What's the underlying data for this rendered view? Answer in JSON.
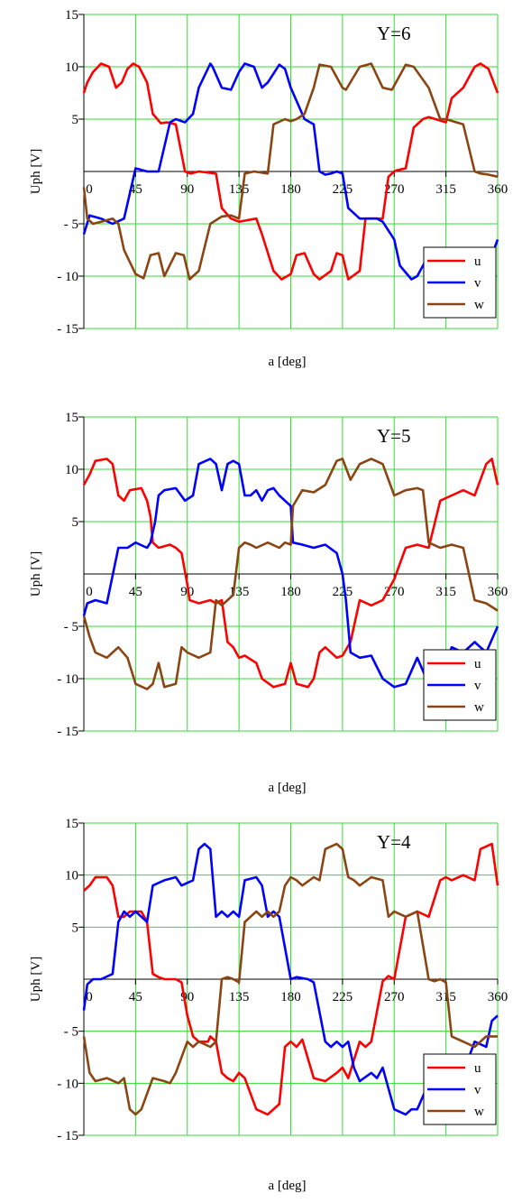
{
  "chart_data": [
    {
      "type": "line",
      "title": "",
      "annotation": "Y=6",
      "xlabel": "a [deg]",
      "ylabel": "Uph [V]",
      "xlim": [
        0,
        360
      ],
      "ylim": [
        -15,
        15
      ],
      "xticks": [
        "0",
        "45",
        "90",
        "135",
        "180",
        "225",
        "270",
        "315",
        "360"
      ],
      "yticks": [
        "15",
        "10",
        "5",
        "- 5",
        "- 10",
        "- 15"
      ],
      "grid": true,
      "legend_position": "bottom-right",
      "series": [
        {
          "name": "u",
          "color": "#ff0000",
          "x": [
            0,
            3,
            8,
            15,
            22,
            28,
            33,
            38,
            43,
            48,
            55,
            60,
            67,
            72,
            80,
            88,
            93,
            100,
            115,
            120,
            128,
            135,
            140,
            150,
            155,
            165,
            172,
            180,
            185,
            192,
            200,
            205,
            215,
            220,
            225,
            230,
            240,
            245,
            260,
            265,
            270,
            272,
            280,
            287,
            295,
            300,
            315,
            320,
            330,
            340,
            345,
            352,
            360
          ],
          "y": [
            7.5,
            8.5,
            9.5,
            10.3,
            10.0,
            8.0,
            8.5,
            9.8,
            10.3,
            10.0,
            8.5,
            5.5,
            4.6,
            4.7,
            4.5,
            0.0,
            -0.2,
            0.0,
            -0.2,
            -3.5,
            -4.5,
            -4.8,
            -4.7,
            -4.5,
            -6.0,
            -9.5,
            -10.3,
            -9.8,
            -8.0,
            -7.8,
            -9.8,
            -10.3,
            -9.5,
            -7.8,
            -8.0,
            -10.3,
            -9.5,
            -4.5,
            -4.5,
            -0.5,
            0.0,
            0.1,
            0.3,
            4.2,
            5.0,
            5.2,
            4.7,
            7.0,
            8.0,
            10.0,
            10.3,
            9.8,
            7.5
          ]
        },
        {
          "name": "v",
          "color": "#0000ff",
          "x": [
            0,
            5,
            15,
            25,
            35,
            45,
            55,
            65,
            75,
            80,
            88,
            95,
            100,
            110,
            112,
            120,
            128,
            135,
            140,
            148,
            155,
            160,
            170,
            175,
            180,
            192,
            200,
            205,
            210,
            215,
            220,
            225,
            230,
            240,
            255,
            260,
            270,
            275,
            285,
            290,
            300,
            315,
            330,
            340,
            350,
            360
          ],
          "y": [
            -6.0,
            -4.2,
            -4.5,
            -5.0,
            -4.5,
            0.3,
            0.0,
            0.0,
            4.7,
            5.0,
            4.7,
            5.5,
            8.0,
            10.3,
            10.0,
            8.0,
            7.8,
            9.5,
            10.3,
            10.0,
            8.0,
            8.5,
            10.2,
            9.8,
            8.0,
            5.0,
            4.5,
            0.0,
            -0.3,
            -0.2,
            0.0,
            -0.2,
            -3.5,
            -4.5,
            -4.5,
            -4.8,
            -6.5,
            -9.0,
            -10.3,
            -10.0,
            -8.0,
            -7.8,
            -9.5,
            -10.3,
            -9.5,
            -6.5
          ]
        },
        {
          "name": "w",
          "color": "#8b4513",
          "x": [
            0,
            3,
            8,
            15,
            25,
            30,
            35,
            45,
            52,
            58,
            65,
            70,
            80,
            87,
            92,
            100,
            110,
            120,
            128,
            135,
            140,
            148,
            160,
            165,
            175,
            180,
            185,
            192,
            200,
            205,
            215,
            225,
            228,
            240,
            250,
            260,
            268,
            280,
            287,
            300,
            310,
            315,
            330,
            340,
            345,
            352,
            360
          ],
          "y": [
            -1.5,
            -4.5,
            -5.0,
            -4.8,
            -4.5,
            -5.0,
            -7.5,
            -9.8,
            -10.2,
            -8.0,
            -7.8,
            -10.0,
            -7.8,
            -8.0,
            -10.3,
            -9.5,
            -5.0,
            -4.3,
            -4.2,
            -4.5,
            -0.2,
            0.0,
            -0.2,
            4.5,
            5.0,
            4.8,
            5.0,
            5.5,
            8.0,
            10.2,
            10.0,
            8.0,
            7.8,
            10.0,
            10.3,
            8.0,
            7.8,
            10.2,
            10.0,
            8.0,
            5.0,
            5.0,
            4.5,
            0.0,
            -0.2,
            -0.3,
            -0.5
          ]
        }
      ]
    },
    {
      "type": "line",
      "title": "",
      "annotation": "Y=5",
      "xlabel": "a [deg]",
      "ylabel": "Uph [V]",
      "xlim": [
        0,
        360
      ],
      "ylim": [
        -15,
        15
      ],
      "xticks": [
        "0",
        "45",
        "90",
        "135",
        "180",
        "225",
        "270",
        "315",
        "360"
      ],
      "yticks": [
        "15",
        "10",
        "5",
        "- 5",
        "- 10",
        "- 15"
      ],
      "grid": true,
      "legend_position": "bottom-right",
      "series": [
        {
          "name": "u",
          "color": "#ff0000",
          "x": [
            0,
            5,
            10,
            20,
            25,
            30,
            35,
            40,
            50,
            55,
            58,
            60,
            65,
            75,
            80,
            85,
            90,
            92,
            100,
            110,
            115,
            120,
            125,
            130,
            135,
            140,
            150,
            155,
            165,
            175,
            180,
            185,
            195,
            200,
            205,
            210,
            220,
            225,
            232,
            240,
            250,
            260,
            270,
            280,
            290,
            300,
            310,
            320,
            330,
            340,
            350,
            355,
            360
          ],
          "y": [
            8.5,
            9.5,
            10.8,
            11.0,
            10.5,
            7.5,
            7.0,
            8.0,
            8.2,
            7.0,
            5.5,
            3.0,
            2.5,
            2.8,
            2.5,
            2.0,
            -1.0,
            -2.5,
            -2.8,
            -2.5,
            -2.8,
            -2.5,
            -6.5,
            -7.0,
            -8.0,
            -7.8,
            -8.5,
            -10.0,
            -10.8,
            -10.5,
            -8.5,
            -10.5,
            -10.8,
            -10.0,
            -7.5,
            -7.0,
            -8.0,
            -7.8,
            -6.5,
            -2.5,
            -3.0,
            -2.5,
            -0.5,
            2.5,
            2.8,
            2.5,
            7.0,
            7.5,
            8.0,
            7.5,
            10.5,
            11.0,
            8.5
          ]
        },
        {
          "name": "v",
          "color": "#0000ff",
          "x": [
            0,
            3,
            10,
            20,
            30,
            38,
            45,
            55,
            58,
            62,
            65,
            70,
            80,
            88,
            95,
            100,
            110,
            115,
            120,
            125,
            130,
            135,
            140,
            145,
            150,
            155,
            160,
            165,
            170,
            175,
            180,
            182,
            190,
            200,
            210,
            220,
            225,
            228,
            232,
            240,
            250,
            260,
            270,
            280,
            290,
            300,
            310,
            320,
            330,
            340,
            350,
            360
          ],
          "y": [
            -4.0,
            -2.8,
            -2.5,
            -2.8,
            2.5,
            2.5,
            3.0,
            2.5,
            3.0,
            5.0,
            7.5,
            8.0,
            8.2,
            7.0,
            7.5,
            10.5,
            11.0,
            10.5,
            8.0,
            10.5,
            10.8,
            10.5,
            7.5,
            7.5,
            8.0,
            7.0,
            8.0,
            8.2,
            7.5,
            7.0,
            6.5,
            3.0,
            2.8,
            2.5,
            2.8,
            2.0,
            0.0,
            -2.5,
            -7.5,
            -8.0,
            -7.8,
            -10.0,
            -10.8,
            -10.5,
            -8.0,
            -10.5,
            -10.0,
            -7.0,
            -7.5,
            -6.5,
            -7.5,
            -5.0
          ]
        },
        {
          "name": "w",
          "color": "#8b4513",
          "x": [
            0,
            5,
            10,
            20,
            30,
            38,
            45,
            55,
            60,
            65,
            70,
            80,
            85,
            90,
            100,
            110,
            115,
            120,
            125,
            130,
            135,
            140,
            145,
            150,
            160,
            170,
            175,
            180,
            182,
            190,
            200,
            210,
            220,
            225,
            232,
            240,
            250,
            260,
            270,
            280,
            290,
            295,
            300,
            310,
            320,
            330,
            340,
            350,
            360
          ],
          "y": [
            -4.0,
            -6.0,
            -7.5,
            -8.0,
            -7.0,
            -8.0,
            -10.5,
            -11.0,
            -10.5,
            -8.5,
            -10.8,
            -10.5,
            -7.0,
            -7.5,
            -8.0,
            -7.5,
            -2.5,
            -3.0,
            -2.5,
            -2.0,
            2.5,
            3.0,
            2.8,
            2.5,
            3.0,
            2.5,
            3.0,
            2.8,
            6.5,
            8.0,
            7.8,
            8.5,
            10.8,
            11.0,
            9.0,
            10.5,
            11.0,
            10.5,
            7.5,
            8.0,
            8.2,
            8.0,
            3.0,
            2.5,
            2.8,
            2.5,
            -2.5,
            -2.8,
            -3.5
          ]
        }
      ]
    },
    {
      "type": "line",
      "title": "",
      "annotation": "Y=4",
      "xlabel": "a [deg]",
      "ylabel": "Uph [V]",
      "xlim": [
        0,
        360
      ],
      "ylim": [
        -15,
        15
      ],
      "xticks": [
        "0",
        "45",
        "90",
        "135",
        "180",
        "225",
        "270",
        "315",
        "360"
      ],
      "yticks": [
        "15",
        "10",
        "5",
        "- 5",
        "- 10",
        "- 15"
      ],
      "grid": true,
      "legend_position": "bottom-right",
      "series": [
        {
          "name": "u",
          "color": "#ff0000",
          "x": [
            0,
            5,
            10,
            20,
            25,
            30,
            35,
            40,
            50,
            55,
            60,
            65,
            70,
            80,
            85,
            90,
            95,
            100,
            108,
            110,
            115,
            120,
            125,
            130,
            135,
            140,
            150,
            160,
            170,
            175,
            180,
            185,
            190,
            200,
            210,
            220,
            225,
            230,
            240,
            245,
            250,
            260,
            265,
            270,
            280,
            290,
            300,
            310,
            315,
            320,
            330,
            340,
            345,
            355,
            360
          ],
          "y": [
            8.5,
            9.0,
            9.8,
            9.8,
            9.0,
            6.0,
            6.0,
            6.5,
            6.5,
            5.5,
            0.5,
            0.2,
            0.0,
            0.0,
            -0.3,
            -3.5,
            -5.5,
            -6.0,
            -6.0,
            -5.5,
            -6.0,
            -9.0,
            -9.5,
            -9.8,
            -9.0,
            -9.5,
            -12.5,
            -13.0,
            -12.0,
            -6.5,
            -6.0,
            -6.5,
            -5.8,
            -9.5,
            -9.8,
            -9.0,
            -8.5,
            -9.5,
            -6.0,
            -6.5,
            -6.0,
            -0.2,
            0.3,
            0.0,
            6.0,
            6.5,
            6.0,
            9.5,
            9.8,
            9.5,
            10.0,
            9.5,
            12.5,
            13.0,
            9.0
          ]
        },
        {
          "name": "v",
          "color": "#0000ff",
          "x": [
            0,
            3,
            8,
            15,
            25,
            30,
            35,
            40,
            45,
            50,
            55,
            60,
            70,
            80,
            85,
            95,
            100,
            105,
            110,
            115,
            120,
            125,
            130,
            135,
            140,
            150,
            155,
            160,
            165,
            170,
            180,
            185,
            195,
            200,
            210,
            215,
            220,
            225,
            230,
            235,
            240,
            250,
            255,
            260,
            270,
            280,
            285,
            290,
            300,
            310,
            315,
            320,
            330,
            340,
            350,
            355,
            360
          ],
          "y": [
            -3.0,
            -0.5,
            0.0,
            0.0,
            0.5,
            5.5,
            6.5,
            6.0,
            6.5,
            6.0,
            5.5,
            9.0,
            9.5,
            9.8,
            9.0,
            9.5,
            12.5,
            13.0,
            12.5,
            6.0,
            6.5,
            6.0,
            6.5,
            6.0,
            9.5,
            9.8,
            9.0,
            6.0,
            6.5,
            6.0,
            0.0,
            0.2,
            0.0,
            -0.3,
            -6.0,
            -6.5,
            -6.0,
            -6.5,
            -6.0,
            -8.5,
            -9.8,
            -9.0,
            -9.5,
            -8.5,
            -12.5,
            -13.0,
            -12.5,
            -12.5,
            -10.0,
            -9.0,
            -9.5,
            -9.8,
            -9.0,
            -6.0,
            -6.5,
            -4.0,
            -3.5
          ]
        },
        {
          "name": "w",
          "color": "#8b4513",
          "x": [
            0,
            5,
            10,
            20,
            30,
            35,
            40,
            45,
            50,
            60,
            70,
            75,
            80,
            90,
            95,
            100,
            110,
            115,
            120,
            125,
            130,
            135,
            140,
            150,
            155,
            160,
            165,
            170,
            175,
            180,
            185,
            190,
            200,
            205,
            210,
            220,
            225,
            230,
            235,
            240,
            250,
            260,
            265,
            270,
            280,
            290,
            300,
            305,
            310,
            315,
            320,
            330,
            340,
            345,
            350,
            360
          ],
          "y": [
            -5.5,
            -9.0,
            -9.8,
            -9.5,
            -10.0,
            -9.5,
            -12.5,
            -13.0,
            -12.5,
            -9.5,
            -9.8,
            -10.0,
            -9.0,
            -6.0,
            -6.5,
            -6.0,
            -6.5,
            -6.0,
            0.0,
            0.2,
            0.0,
            -0.3,
            5.5,
            6.5,
            6.0,
            6.5,
            6.0,
            6.5,
            9.0,
            9.8,
            9.5,
            9.0,
            9.8,
            9.5,
            12.5,
            13.0,
            12.5,
            9.8,
            9.5,
            9.0,
            9.8,
            9.5,
            6.0,
            6.5,
            6.0,
            6.5,
            0.0,
            -0.2,
            0.0,
            -0.3,
            -5.5,
            -6.0,
            -6.5,
            -6.0,
            -5.5,
            -5.5
          ]
        }
      ]
    }
  ]
}
